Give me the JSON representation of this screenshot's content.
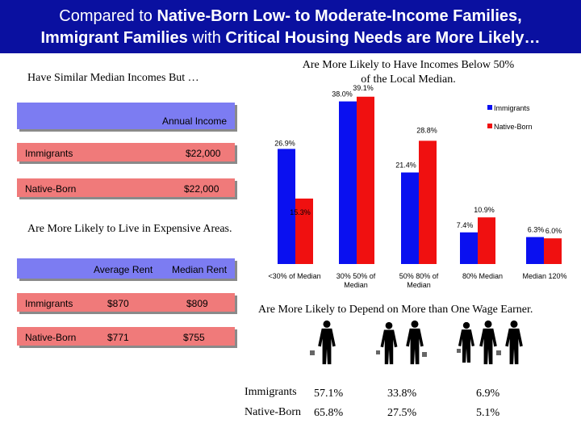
{
  "header": {
    "line1_pre": "Compared to ",
    "line1_bold": "Native-Born Low- to Moderate-Income Families,",
    "line2_bold": "Immigrant Families",
    "line2_mid": " with ",
    "line2_bold2": "Critical Housing Needs are More Likely…"
  },
  "income_panel": {
    "heading": "Have Similar Median Incomes But …",
    "column": "Annual Income",
    "rows": [
      {
        "label": "Immigrants",
        "value": "$22,000"
      },
      {
        "label": "Native-Born",
        "value": "$22,000"
      }
    ]
  },
  "rent_panel": {
    "heading": "Are More Likely to Live in Expensive Areas.",
    "columns": [
      "Average Rent",
      "Median Rent"
    ],
    "rows": [
      {
        "label": "Immigrants",
        "average": "$870",
        "median": "$809"
      },
      {
        "label": "Native-Born",
        "average": "$771",
        "median": "$755"
      }
    ]
  },
  "chart_heading": {
    "line1": "Are More Likely to Have Incomes Below 50%",
    "line2": "of the Local Median."
  },
  "chart_data": {
    "type": "bar",
    "title": "",
    "xlabel": "",
    "ylabel": "",
    "ylim": [
      0,
      42
    ],
    "grid": false,
    "legend_position": "top-right",
    "categories": [
      "<30% of Median",
      "30% 50% of Median",
      "50% 80% of Median",
      "80% Median",
      "Median 120%"
    ],
    "category_lines": [
      [
        "<30% of Median"
      ],
      [
        "30% 50% of",
        "Median"
      ],
      [
        "50% 80% of",
        "Median"
      ],
      [
        "80% Median"
      ],
      [
        "Median   120%"
      ]
    ],
    "series": [
      {
        "name": "Immigrants",
        "values": [
          26.9,
          38.0,
          21.4,
          7.4,
          6.3
        ],
        "labels": [
          "26.9%",
          "38.0%",
          "21.4%",
          "7.4%",
          "6.3%"
        ],
        "color": "#0a10f0"
      },
      {
        "name": "Native-Born",
        "values": [
          15.3,
          39.1,
          28.8,
          10.9,
          6.0
        ],
        "labels": [
          "15.3%",
          "39.1%",
          "28.8%",
          "10.9%",
          "6.0%"
        ],
        "color": "#f01010"
      }
    ]
  },
  "wage_panel": {
    "heading": "Are More Likely to Depend on More than One Wage Earner.",
    "icons": [
      "one-earner-figure-icon",
      "two-earners-figures-icon",
      "three-earners-figures-icon"
    ],
    "rows": [
      {
        "label": "Immigrants",
        "values": [
          "57.1%",
          "33.8%",
          "6.9%"
        ]
      },
      {
        "label": "Native-Born",
        "values": [
          "65.8%",
          "27.5%",
          "5.1%"
        ]
      }
    ]
  }
}
